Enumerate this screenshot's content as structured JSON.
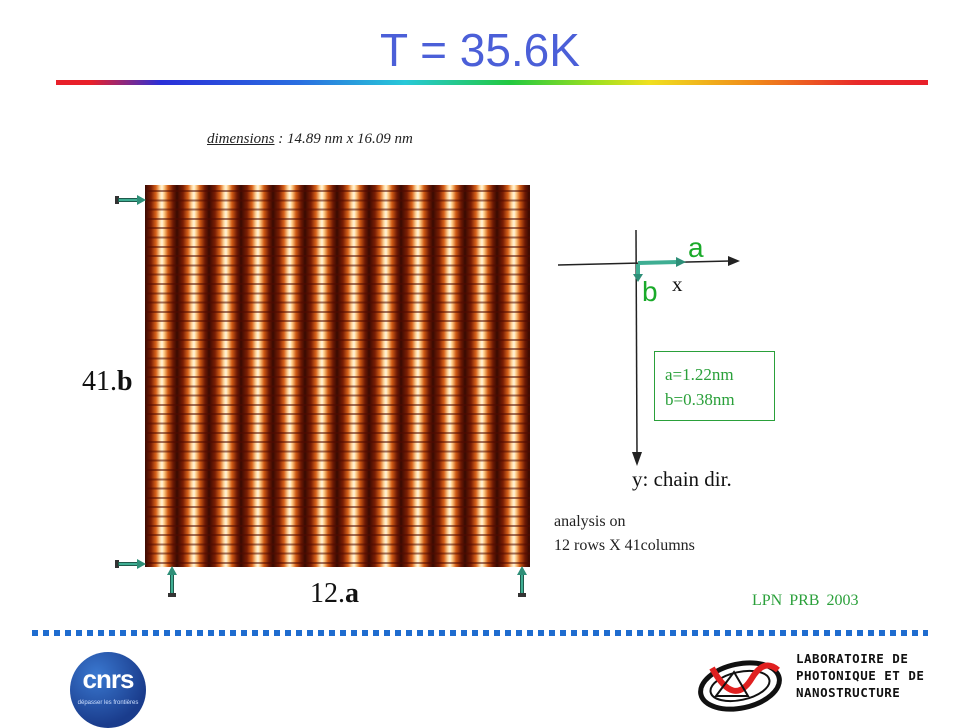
{
  "title": "T = 35.6K",
  "dimensions": {
    "label": "dimensions",
    "separator": " : ",
    "value": "14.89 nm x 16.09 nm"
  },
  "image_labels": {
    "vertical_count": "41.",
    "vertical_vector": "b",
    "horizontal_count": "12.",
    "horizontal_vector": "a"
  },
  "axes": {
    "a_label": "a",
    "b_label": "b",
    "x_label": "x",
    "y_label": "y: chain dir."
  },
  "lattice": {
    "a": "a=1.22nm",
    "b": "b=0.38nm"
  },
  "analysis": {
    "line1": "analysis on",
    "line2": "12 rows X 41columns"
  },
  "reference": "LPN  PRB 2003",
  "logos": {
    "cnrs": "cnrs",
    "cnrs_sub": "dépasser les frontières",
    "lab_line1": "LABORATOIRE DE",
    "lab_line2": "PHOTONIQUE ET DE",
    "lab_line3": "NANOSTRUCTURE"
  },
  "colors": {
    "title": "#4b5fd8",
    "accent_green": "#2aa03a",
    "arrow": "#3fae93",
    "dotted_line": "#1f6ccf"
  }
}
